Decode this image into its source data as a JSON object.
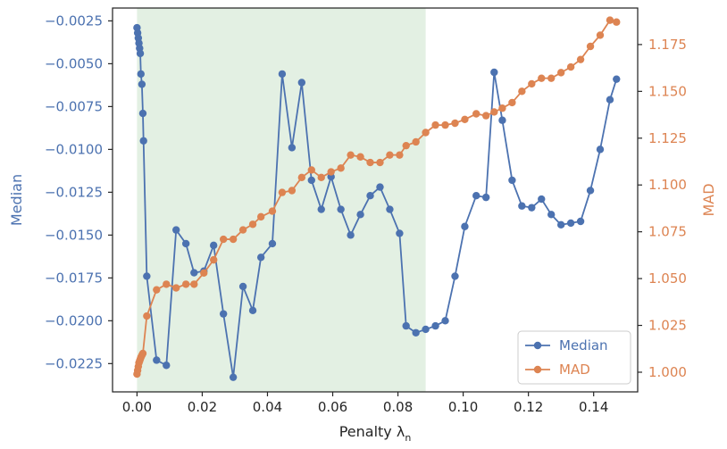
{
  "chart_data": {
    "type": "line",
    "xlabel": "Penalty λ",
    "xlabel_subscript": "n",
    "ylabel_left": "Median",
    "ylabel_right": "MAD",
    "xlim": [
      -0.0075,
      0.1535
    ],
    "ylim_left": [
      -0.02415,
      -0.00175
    ],
    "ylim_right": [
      0.9895,
      1.1945
    ],
    "x_ticks": [
      0.0,
      0.02,
      0.04,
      0.06,
      0.08,
      0.1,
      0.12,
      0.14
    ],
    "x_tick_labels": [
      "0.00",
      "0.02",
      "0.04",
      "0.06",
      "0.08",
      "0.10",
      "0.12",
      "0.14"
    ],
    "y_left_ticks": [
      -0.0225,
      -0.02,
      -0.0175,
      -0.015,
      -0.0125,
      -0.01,
      -0.0075,
      -0.005,
      -0.0025
    ],
    "y_left_tick_labels": [
      "−0.0225",
      "−0.0200",
      "−0.0175",
      "−0.0150",
      "−0.0125",
      "−0.0100",
      "−0.0075",
      "−0.0050",
      "−0.0025"
    ],
    "y_right_ticks": [
      1.0,
      1.025,
      1.05,
      1.075,
      1.1,
      1.125,
      1.15,
      1.175
    ],
    "y_right_tick_labels": [
      "1.000",
      "1.025",
      "1.050",
      "1.075",
      "1.100",
      "1.125",
      "1.150",
      "1.175"
    ],
    "shaded_region": {
      "x_start": 0.0,
      "x_end": 0.0885,
      "color": "#e3f0e3"
    },
    "legend_position": "lower-right",
    "colors": {
      "median": "#4c72b0",
      "mad": "#dd8452",
      "axis": "#262626"
    },
    "series": [
      {
        "name": "Median",
        "axis": "left",
        "x": [
          0.0,
          0.0002,
          0.0004,
          0.0006,
          0.0008,
          0.001,
          0.0012,
          0.0015,
          0.0018,
          0.002,
          0.003,
          0.006,
          0.009,
          0.012,
          0.015,
          0.0175,
          0.0205,
          0.0235,
          0.0265,
          0.0295,
          0.0325,
          0.0355,
          0.038,
          0.0415,
          0.0445,
          0.0475,
          0.0505,
          0.0535,
          0.0565,
          0.0595,
          0.0625,
          0.0655,
          0.0685,
          0.0715,
          0.0745,
          0.0775,
          0.0805,
          0.0825,
          0.0855,
          0.0885,
          0.0915,
          0.0945,
          0.0975,
          0.1005,
          0.104,
          0.107,
          0.1095,
          0.112,
          0.115,
          0.118,
          0.121,
          0.124,
          0.127,
          0.13,
          0.133,
          0.136,
          0.139,
          0.142,
          0.145,
          0.147
        ],
        "values": [
          -0.0029,
          -0.0032,
          -0.0035,
          -0.0038,
          -0.0041,
          -0.0044,
          -0.0056,
          -0.0062,
          -0.0079,
          -0.0095,
          -0.0174,
          -0.0223,
          -0.0226,
          -0.0147,
          -0.0155,
          -0.0172,
          -0.0171,
          -0.0156,
          -0.0196,
          -0.0233,
          -0.018,
          -0.0194,
          -0.0163,
          -0.0155,
          -0.0056,
          -0.0099,
          -0.0061,
          -0.0118,
          -0.0135,
          -0.0116,
          -0.0135,
          -0.015,
          -0.0138,
          -0.0127,
          -0.0122,
          -0.0135,
          -0.0149,
          -0.0203,
          -0.0207,
          -0.0205,
          -0.0203,
          -0.02,
          -0.0174,
          -0.0145,
          -0.0127,
          -0.0128,
          -0.0055,
          -0.0083,
          -0.0118,
          -0.0133,
          -0.0134,
          -0.0129,
          -0.0138,
          -0.0144,
          -0.0143,
          -0.0142,
          -0.0124,
          -0.01,
          -0.0071,
          -0.0059
        ]
      },
      {
        "name": "MAD",
        "axis": "right",
        "x": [
          0.0,
          0.0002,
          0.0004,
          0.0006,
          0.0008,
          0.001,
          0.0012,
          0.0015,
          0.0018,
          0.003,
          0.006,
          0.009,
          0.012,
          0.015,
          0.0175,
          0.0205,
          0.0235,
          0.0265,
          0.0295,
          0.0325,
          0.0355,
          0.038,
          0.0415,
          0.0445,
          0.0475,
          0.0505,
          0.0535,
          0.0565,
          0.0595,
          0.0625,
          0.0655,
          0.0685,
          0.0715,
          0.0745,
          0.0775,
          0.0805,
          0.0825,
          0.0855,
          0.0885,
          0.0915,
          0.0945,
          0.0975,
          0.1005,
          0.104,
          0.107,
          0.1095,
          0.112,
          0.115,
          0.118,
          0.121,
          0.124,
          0.127,
          0.13,
          0.133,
          0.136,
          0.139,
          0.142,
          0.145,
          0.147
        ],
        "values": [
          0.999,
          1.001,
          1.003,
          1.005,
          1.006,
          1.007,
          1.008,
          1.009,
          1.01,
          1.03,
          1.044,
          1.047,
          1.045,
          1.047,
          1.047,
          1.053,
          1.06,
          1.071,
          1.071,
          1.076,
          1.079,
          1.083,
          1.086,
          1.096,
          1.097,
          1.104,
          1.108,
          1.104,
          1.107,
          1.109,
          1.116,
          1.115,
          1.112,
          1.112,
          1.116,
          1.116,
          1.121,
          1.123,
          1.128,
          1.132,
          1.132,
          1.133,
          1.135,
          1.138,
          1.137,
          1.139,
          1.141,
          1.144,
          1.15,
          1.154,
          1.157,
          1.157,
          1.16,
          1.163,
          1.167,
          1.174,
          1.18,
          1.188,
          1.187
        ]
      }
    ]
  }
}
